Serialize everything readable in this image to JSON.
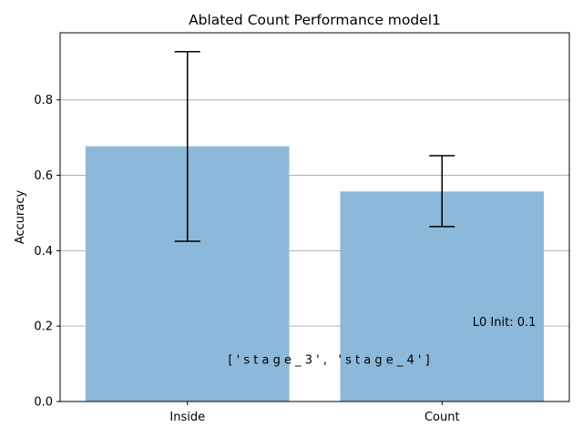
{
  "chart_data": {
    "type": "bar",
    "title": "Ablated Count Performance model1",
    "xlabel": "",
    "ylabel": "Accuracy",
    "categories": [
      "Inside",
      "Count"
    ],
    "values": [
      0.677,
      0.557
    ],
    "error_low": [
      0.425,
      0.464
    ],
    "error_high": [
      0.928,
      0.652
    ],
    "ylim": [
      0,
      0.978
    ],
    "yticks": [
      0.0,
      0.2,
      0.4,
      0.6,
      0.8
    ],
    "ytick_labels": [
      "0.0",
      "0.2",
      "0.4",
      "0.6",
      "0.8"
    ],
    "grid": "horizontal",
    "bar_color": "#8cb8d9",
    "annotations": [
      {
        "text": "L0 Init: 0.1",
        "x": 1.12,
        "y": 0.2
      },
      {
        "text": "[ ' s t a g e _ 3 ' ,   ' s t a g e _ 4 ' ]",
        "x": 0.16,
        "y": 0.1
      }
    ]
  }
}
